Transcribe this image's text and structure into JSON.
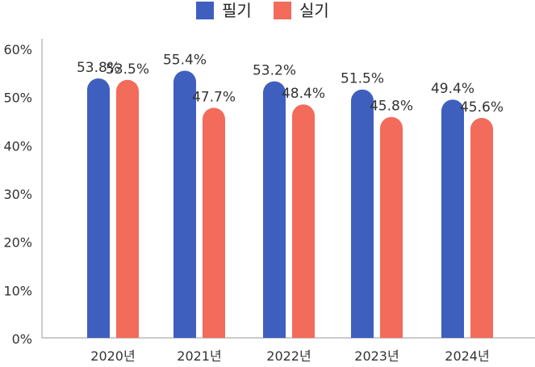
{
  "chart_data": {
    "type": "bar",
    "categories": [
      "2020년",
      "2021년",
      "2022년",
      "2023년",
      "2024년"
    ],
    "series": [
      {
        "name": "필기",
        "color": "#3f5fbf",
        "values": [
          53.8,
          55.4,
          53.2,
          51.5,
          49.4
        ],
        "labels": [
          "53.8%",
          "55.4%",
          "53.2%",
          "51.5%",
          "49.4%"
        ]
      },
      {
        "name": "실기",
        "color": "#f26b5b",
        "values": [
          53.5,
          47.7,
          48.4,
          45.8,
          45.6
        ],
        "labels": [
          "53.5%",
          "47.7%",
          "48.4%",
          "45.8%",
          "45.6%"
        ]
      }
    ],
    "yticks": [
      "0%",
      "10%",
      "20%",
      "30%",
      "40%",
      "50%",
      "60%"
    ],
    "ylim": [
      0,
      60
    ],
    "legend": "top-center",
    "grid": false
  }
}
